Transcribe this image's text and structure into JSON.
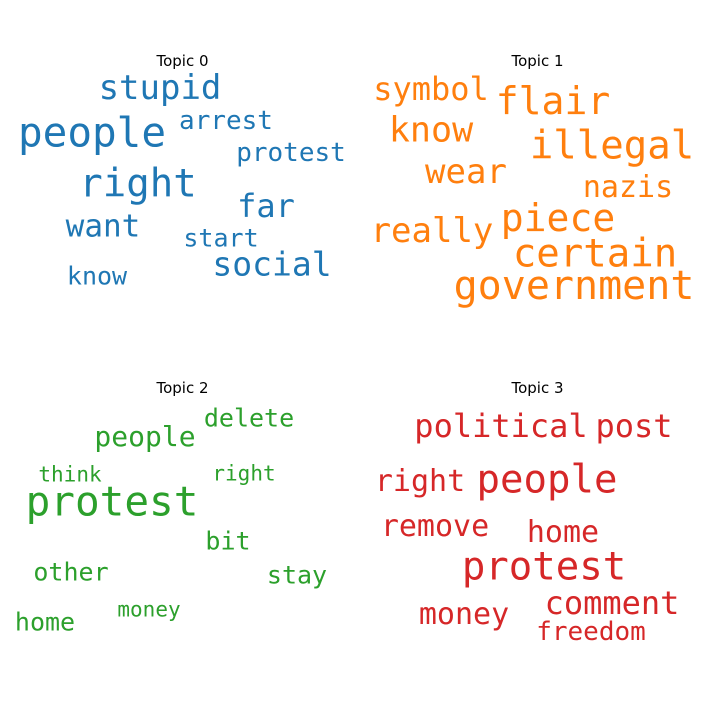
{
  "chart_data": [
    {
      "type": "wordcloud",
      "title": "Topic 0",
      "color": "#1f77b4",
      "words": [
        {
          "text": "people",
          "weight": 1.0
        },
        {
          "text": "right",
          "weight": 0.95
        },
        {
          "text": "stupid",
          "weight": 0.8
        },
        {
          "text": "far",
          "weight": 0.7
        },
        {
          "text": "want",
          "weight": 0.66
        },
        {
          "text": "social",
          "weight": 0.7
        },
        {
          "text": "arrest",
          "weight": 0.55
        },
        {
          "text": "protest",
          "weight": 0.55
        },
        {
          "text": "start",
          "weight": 0.5
        },
        {
          "text": "know",
          "weight": 0.5
        }
      ]
    },
    {
      "type": "wordcloud",
      "title": "Topic 1",
      "color": "#ff7f0e",
      "words": [
        {
          "text": "government",
          "weight": 1.0
        },
        {
          "text": "certain",
          "weight": 0.97
        },
        {
          "text": "illegal",
          "weight": 0.97
        },
        {
          "text": "piece",
          "weight": 0.92
        },
        {
          "text": "flair",
          "weight": 0.9
        },
        {
          "text": "know",
          "weight": 0.85
        },
        {
          "text": "wear",
          "weight": 0.8
        },
        {
          "text": "really",
          "weight": 0.8
        },
        {
          "text": "symbol",
          "weight": 0.75
        },
        {
          "text": "nazis",
          "weight": 0.7
        }
      ]
    },
    {
      "type": "wordcloud",
      "title": "Topic 2",
      "color": "#2ca02c",
      "words": [
        {
          "text": "protest",
          "weight": 1.0
        },
        {
          "text": "people",
          "weight": 0.7
        },
        {
          "text": "delete",
          "weight": 0.6
        },
        {
          "text": "bit",
          "weight": 0.58
        },
        {
          "text": "other",
          "weight": 0.58
        },
        {
          "text": "stay",
          "weight": 0.58
        },
        {
          "text": "home",
          "weight": 0.58
        },
        {
          "text": "think",
          "weight": 0.48
        },
        {
          "text": "right",
          "weight": 0.48
        },
        {
          "text": "money",
          "weight": 0.48
        }
      ]
    },
    {
      "type": "wordcloud",
      "title": "Topic 3",
      "color": "#d62728",
      "words": [
        {
          "text": "people",
          "weight": 1.0
        },
        {
          "text": "protest",
          "weight": 1.0
        },
        {
          "text": "political",
          "weight": 0.85
        },
        {
          "text": "post",
          "weight": 0.85
        },
        {
          "text": "comment",
          "weight": 0.85
        },
        {
          "text": "right",
          "weight": 0.75
        },
        {
          "text": "remove",
          "weight": 0.75
        },
        {
          "text": "home",
          "weight": 0.75
        },
        {
          "text": "money",
          "weight": 0.75
        },
        {
          "text": "freedom",
          "weight": 0.65
        }
      ]
    }
  ]
}
